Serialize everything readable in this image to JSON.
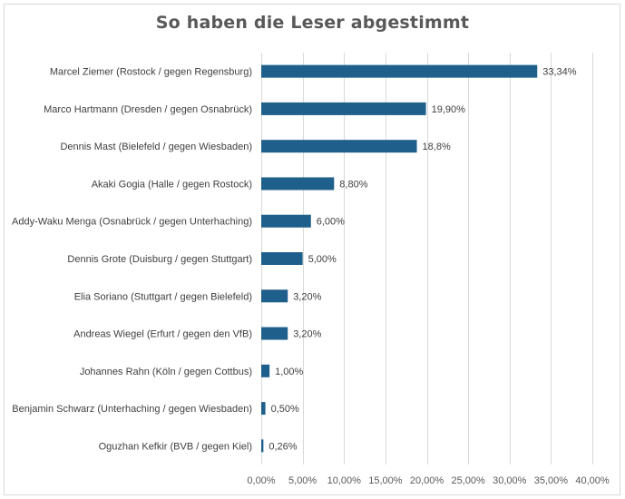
{
  "chart_data": {
    "type": "bar",
    "orientation": "horizontal",
    "title": "So haben die Leser abgestimmt",
    "xlabel": "",
    "ylabel": "",
    "xlim": [
      0,
      0.4
    ],
    "grid": true,
    "bar_color": "#1f5f8b",
    "categories": [
      "Marcel Ziemer (Rostock / gegen Regensburg)",
      "Marco Hartmann (Dresden / gegen Osnabrück)",
      "Dennis Mast (Bielefeld / gegen Wiesbaden)",
      "Akaki Gogia (Halle / gegen Rostock)",
      "Addy-Waku Menga (Osnabrück / gegen Unterhaching)",
      "Dennis Grote (Duisburg / gegen Stuttgart)",
      "Elia Soriano (Stuttgart / gegen Bielefeld)",
      "Andreas Wiegel (Erfurt / gegen den VfB)",
      "Johannes Rahn (Köln / gegen Cottbus)",
      "Benjamin Schwarz (Unterhaching / gegen Wiesbaden)",
      "Oguzhan Kefkir (BVB / gegen Kiel)"
    ],
    "values": [
      0.3334,
      0.199,
      0.188,
      0.088,
      0.06,
      0.05,
      0.032,
      0.032,
      0.01,
      0.005,
      0.0026
    ],
    "data_labels": [
      "33,34%",
      "19,90%",
      "18,8%",
      "8,80%",
      "6,00%",
      "5,00%",
      "3,20%",
      "3,20%",
      "1,00%",
      "0,50%",
      "0,26%"
    ],
    "x_ticks": [
      0,
      0.05,
      0.1,
      0.15,
      0.2,
      0.25,
      0.3,
      0.35,
      0.4
    ],
    "x_tick_labels": [
      "0,00%",
      "5,00%",
      "10,00%",
      "15,00%",
      "20,00%",
      "25,00%",
      "30,00%",
      "35,00%",
      "40,00%"
    ]
  }
}
